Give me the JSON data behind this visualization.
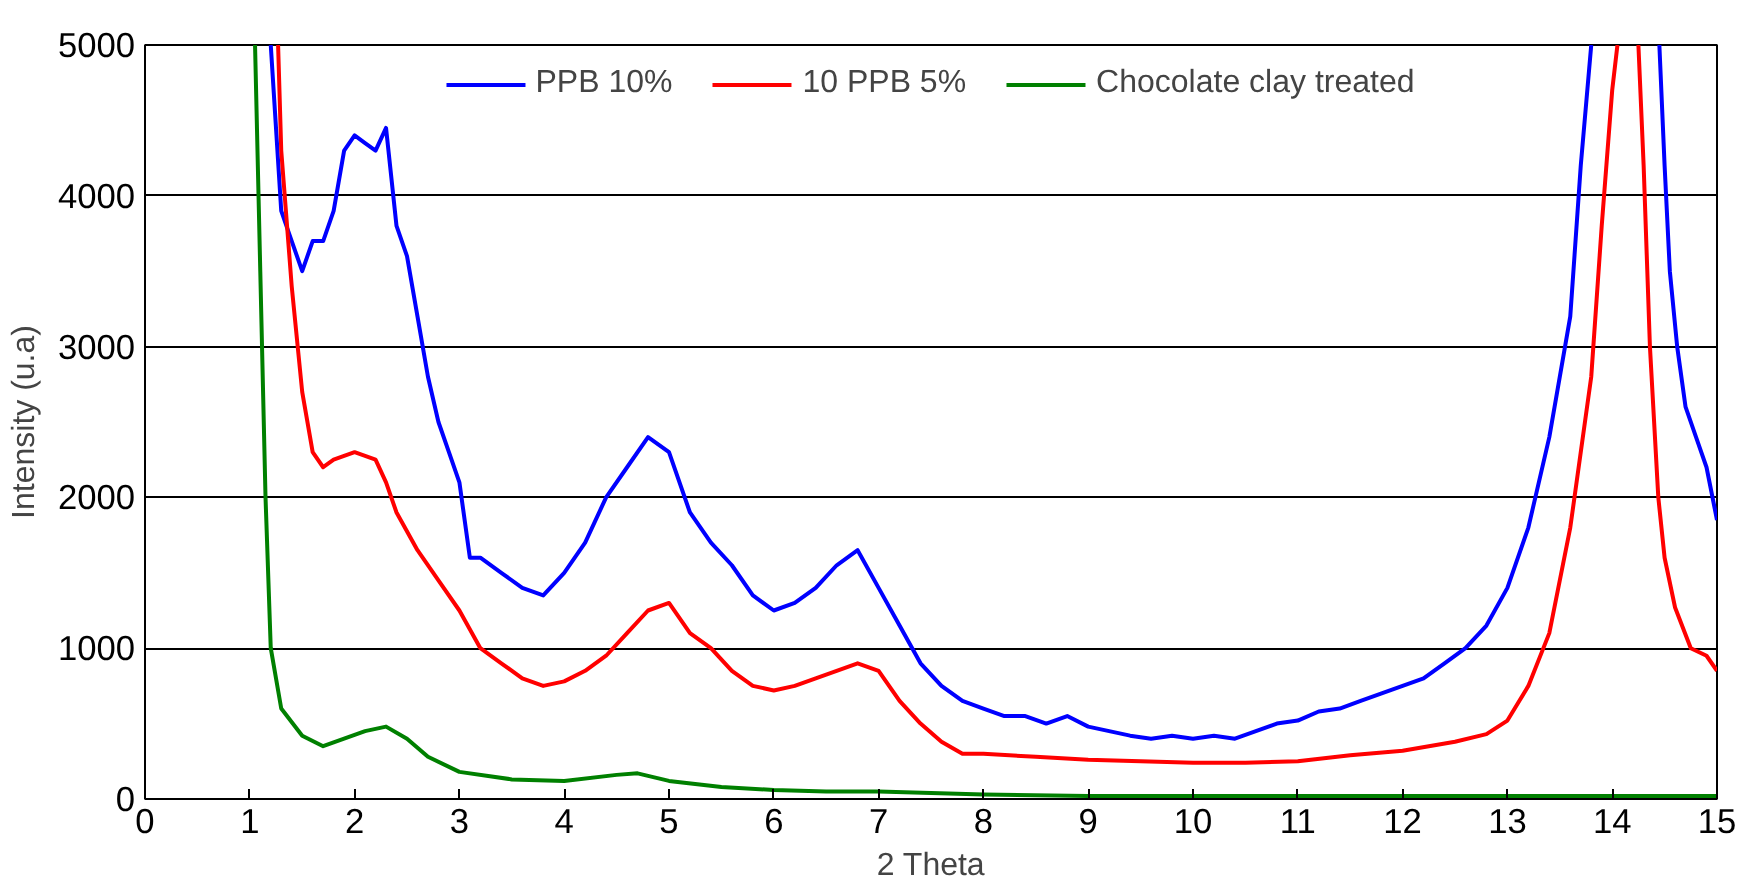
{
  "chart_data": {
    "type": "line",
    "xlabel": "2 Theta",
    "ylabel": "Intensity (u.a)",
    "xlim": [
      0,
      15
    ],
    "xticks": [
      0,
      1,
      2,
      3,
      4,
      5,
      6,
      7,
      8,
      9,
      10,
      11,
      12,
      13,
      14,
      15
    ],
    "ylim": [
      0,
      5000
    ],
    "yticks": [
      0,
      1000,
      2000,
      3000,
      4000,
      5000
    ],
    "grid": "y",
    "legend": "top",
    "marker": "none",
    "line_style": "solid",
    "series": [
      {
        "name": "PPB 10%",
        "color": "#0000ff",
        "x": [
          1.2,
          1.3,
          1.4,
          1.5,
          1.6,
          1.7,
          1.8,
          1.9,
          2.0,
          2.1,
          2.2,
          2.3,
          2.4,
          2.5,
          2.6,
          2.7,
          2.8,
          2.9,
          3.0,
          3.1,
          3.2,
          3.4,
          3.6,
          3.8,
          4.0,
          4.2,
          4.4,
          4.6,
          4.8,
          5.0,
          5.2,
          5.4,
          5.6,
          5.8,
          6.0,
          6.2,
          6.4,
          6.6,
          6.8,
          7.0,
          7.2,
          7.4,
          7.6,
          7.8,
          8.0,
          8.2,
          8.4,
          8.6,
          8.8,
          9.0,
          9.2,
          9.4,
          9.6,
          9.8,
          10.0,
          10.2,
          10.4,
          10.6,
          10.8,
          11.0,
          11.2,
          11.4,
          11.6,
          11.8,
          12.0,
          12.2,
          12.4,
          12.6,
          12.8,
          13.0,
          13.2,
          13.4,
          13.6,
          13.7,
          13.8,
          14.0,
          14.45,
          14.5,
          14.55,
          14.62,
          14.7,
          14.8,
          14.9,
          15.0
        ],
        "values": [
          5000,
          3900,
          3700,
          3500,
          3700,
          3700,
          3900,
          4300,
          4400,
          4350,
          4300,
          4450,
          3800,
          3600,
          3200,
          2800,
          2500,
          2300,
          2100,
          1600,
          1600,
          1500,
          1400,
          1350,
          1500,
          1700,
          2000,
          2200,
          2400,
          2300,
          1900,
          1700,
          1550,
          1350,
          1250,
          1300,
          1400,
          1550,
          1650,
          1400,
          1150,
          900,
          750,
          650,
          600,
          550,
          550,
          500,
          550,
          480,
          450,
          420,
          400,
          420,
          400,
          420,
          400,
          450,
          500,
          520,
          580,
          600,
          650,
          700,
          750,
          800,
          900,
          1000,
          1150,
          1400,
          1800,
          2400,
          3200,
          4200,
          5000,
          null,
          5000,
          4200,
          3500,
          3000,
          2600,
          2400,
          2200,
          1850
        ]
      },
      {
        "name": "10 PPB 5%",
        "color": "#ff0000",
        "x": [
          1.27,
          1.3,
          1.4,
          1.5,
          1.6,
          1.7,
          1.8,
          2.0,
          2.2,
          2.3,
          2.4,
          2.6,
          2.8,
          3.0,
          3.2,
          3.4,
          3.6,
          3.8,
          4.0,
          4.2,
          4.4,
          4.6,
          4.8,
          5.0,
          5.2,
          5.4,
          5.6,
          5.8,
          6.0,
          6.2,
          6.4,
          6.6,
          6.8,
          7.0,
          7.2,
          7.4,
          7.6,
          7.8,
          8.0,
          8.5,
          9.0,
          9.5,
          10.0,
          10.5,
          11.0,
          11.5,
          12.0,
          12.5,
          12.8,
          13.0,
          13.2,
          13.4,
          13.6,
          13.8,
          13.9,
          14.0,
          14.05,
          14.15,
          14.25,
          14.3,
          14.36,
          14.44,
          14.5,
          14.6,
          14.75,
          14.9,
          15.0
        ],
        "values": [
          5000,
          4300,
          3400,
          2700,
          2300,
          2200,
          2250,
          2300,
          2250,
          2100,
          1900,
          1650,
          1450,
          1250,
          1000,
          900,
          800,
          750,
          780,
          850,
          950,
          1100,
          1250,
          1300,
          1100,
          1000,
          850,
          750,
          720,
          750,
          800,
          850,
          900,
          850,
          650,
          500,
          380,
          300,
          300,
          280,
          260,
          250,
          240,
          240,
          250,
          290,
          320,
          380,
          430,
          520,
          750,
          1100,
          1800,
          2800,
          3800,
          4700,
          5000,
          null,
          5000,
          4200,
          3000,
          2000,
          1600,
          1270,
          1000,
          950,
          850
        ]
      },
      {
        "name": "Chocolate clay treated",
        "color": "#008000",
        "x": [
          1.05,
          1.1,
          1.15,
          1.2,
          1.3,
          1.5,
          1.7,
          1.9,
          2.1,
          2.3,
          2.5,
          2.7,
          3.0,
          3.5,
          4.0,
          4.5,
          4.7,
          5.0,
          5.5,
          6.0,
          6.5,
          7.0,
          8.0,
          9.0,
          10.0,
          11.0,
          12.0,
          13.0,
          14.0,
          15.0
        ],
        "values": [
          5000,
          3500,
          2000,
          1000,
          600,
          420,
          350,
          400,
          450,
          480,
          400,
          280,
          180,
          130,
          120,
          160,
          170,
          120,
          80,
          60,
          50,
          50,
          30,
          20,
          20,
          20,
          20,
          20,
          20,
          20
        ]
      }
    ]
  }
}
